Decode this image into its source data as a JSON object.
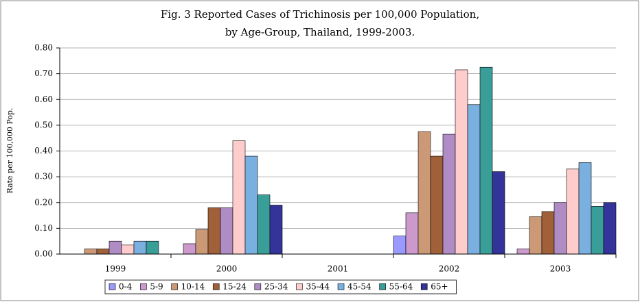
{
  "chart_data": {
    "type": "bar",
    "title": "Fig. 3  Reported Cases of Trichinosis per 100,000 Population,",
    "subtitle": "by Age-Group, Thailand, 1999-2003.",
    "y_label": "Rate per 100,000 Pop.",
    "categories": [
      "1999",
      "2000",
      "2001",
      "2002",
      "2003"
    ],
    "series": [
      {
        "name": "0-4",
        "color": "#9999ff",
        "values": [
          0,
          0,
          0,
          0.07,
          0
        ]
      },
      {
        "name": "5-9",
        "color": "#cc99cc",
        "values": [
          0,
          0.04,
          0,
          0.16,
          0.02
        ]
      },
      {
        "name": "10-14",
        "color": "#cc9977",
        "values": [
          0.02,
          0.095,
          0,
          0.475,
          0.145
        ]
      },
      {
        "name": "15-24",
        "color": "#a0603a",
        "values": [
          0.02,
          0.18,
          0,
          0.38,
          0.165
        ]
      },
      {
        "name": "25-34",
        "color": "#b08cc4",
        "values": [
          0.05,
          0.18,
          0,
          0.465,
          0.2
        ]
      },
      {
        "name": "35-44",
        "color": "#ffcccc",
        "values": [
          0.035,
          0.44,
          0,
          0.715,
          0.33
        ]
      },
      {
        "name": "45-54",
        "color": "#7ab0e0",
        "values": [
          0.05,
          0.38,
          0,
          0.58,
          0.355
        ]
      },
      {
        "name": "55-64",
        "color": "#3a9e98",
        "values": [
          0.05,
          0.23,
          0,
          0.725,
          0.185
        ]
      },
      {
        "name": "65+",
        "color": "#333399",
        "values": [
          0,
          0.19,
          0,
          0.32,
          0.2
        ]
      }
    ],
    "ylim": [
      0,
      0.8
    ],
    "yticks": [
      {
        "value": 0,
        "label": "0.00"
      },
      {
        "value": 0.1,
        "label": "0.10"
      },
      {
        "value": 0.2,
        "label": "0.20"
      },
      {
        "value": 0.3,
        "label": "0.30"
      },
      {
        "value": 0.4,
        "label": "0.40"
      },
      {
        "value": 0.5,
        "label": "0.50"
      },
      {
        "value": 0.6,
        "label": "0.60"
      },
      {
        "value": 0.7,
        "label": "0.70"
      },
      {
        "value": 0.8,
        "label": "0.80"
      }
    ],
    "grid": true,
    "legend": "bottom"
  }
}
